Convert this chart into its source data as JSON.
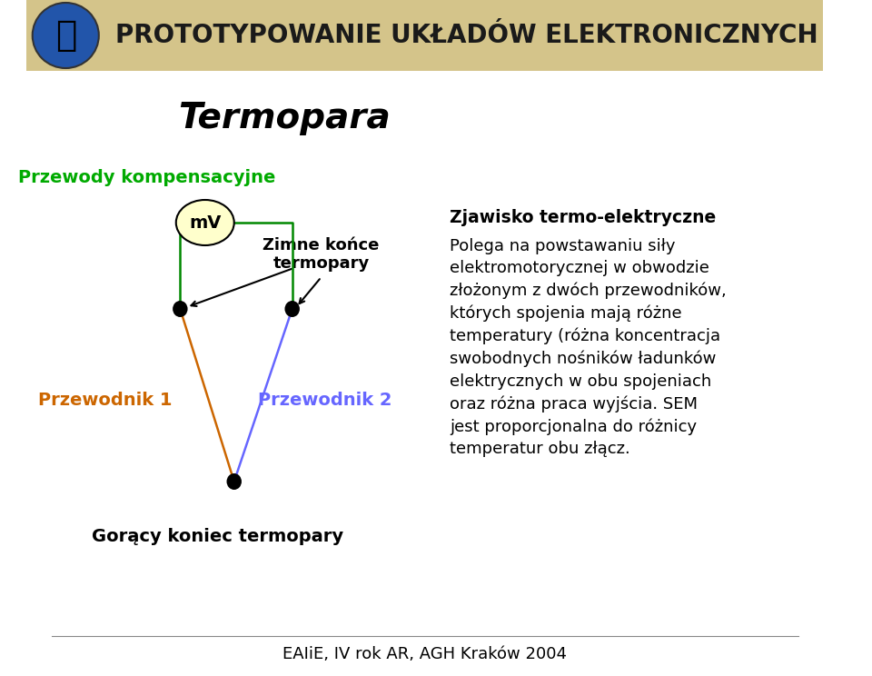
{
  "title_header": "PROTOTYPOWANIE UKŁADÓW ELEKTRONICZNYCH",
  "title_main": "Termopara",
  "header_bg": "#D4C48A",
  "header_text_color": "#1a1a1a",
  "bg_color": "#ffffff",
  "label_przewody": "Przewody kompensacyjne",
  "label_przewody_color": "#00aa00",
  "label_zimne": "Zimne końce\ntermopary",
  "label_zimne_color": "#000000",
  "label_przewodnik1": "Przewodnik 1",
  "label_przewodnik1_color": "#cc6600",
  "label_przewodnik2": "Przewodnik 2",
  "label_przewodnik2_color": "#6666ff",
  "label_goracy": "Gorący koniec termopary",
  "label_goracy_color": "#000000",
  "mv_label": "mV",
  "mv_circle_color": "#ffffcc",
  "mv_circle_edge": "#000000",
  "node_color": "#000000",
  "line_color_top": "#008800",
  "line_color_p1": "#cc6600",
  "line_color_p2": "#6666ff",
  "desc_title": "Zjawisko termo-elektryczne",
  "desc_body": "Polega na powstawaniu siły\nelektromotorycznej w obwodzie\nzłożonym z dwóch przewodników,\nktórych spojenia mają różne\ntemperatury (różna koncentracja\nswobodnych nośników ładunków\nelektrycznych w obu spojeniach\noraz różna praca wyjścia. SEM\njest proporcjonalna do różnicy\ntemperatur obu złącz.",
  "footer_text": "EAIiE, IV rok AR, AGH Kraków 2004",
  "footer_color": "#000000"
}
